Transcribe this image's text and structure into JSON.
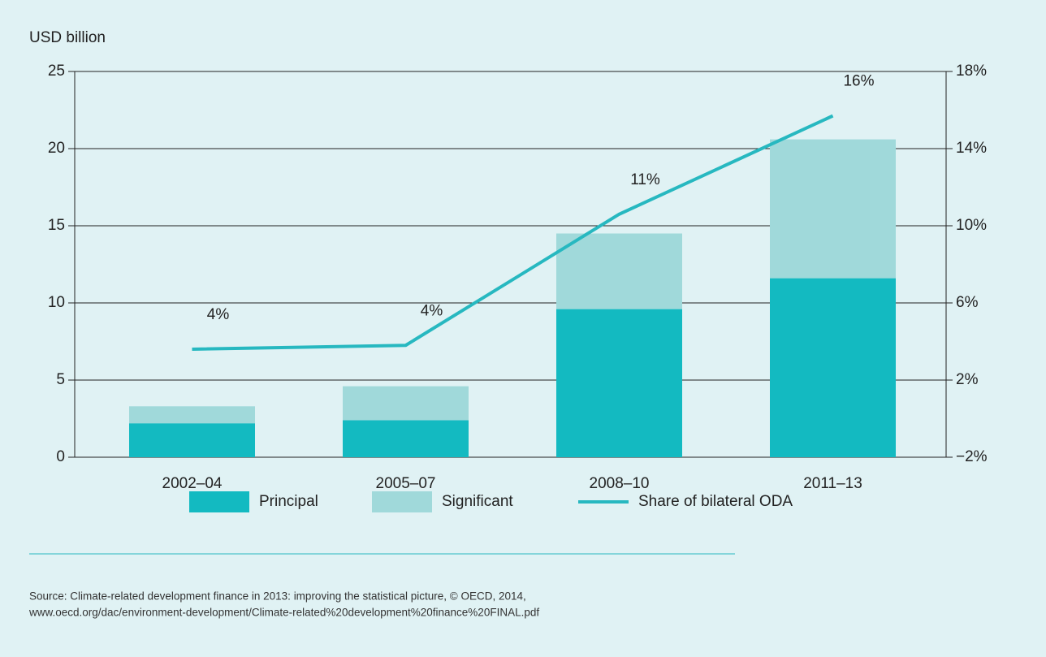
{
  "chart_data": {
    "type": "bar",
    "y_label": "USD billion",
    "categories": [
      "2002–04",
      "2005–07",
      "2008–10",
      "2011–13"
    ],
    "stacked": true,
    "series": [
      {
        "name": "Principal",
        "color": "#13bac1",
        "values": [
          2.2,
          2.4,
          9.6,
          11.6
        ]
      },
      {
        "name": "Significant",
        "color": "#a0d9da",
        "values": [
          1.1,
          2.2,
          4.9,
          9.0
        ]
      },
      {
        "name": "Share of bilateral ODA",
        "type": "line",
        "axis": "y2",
        "color": "#27b8c0",
        "values": [
          3.6,
          3.8,
          10.6,
          15.7
        ],
        "value_labels": [
          "4%",
          "4%",
          "11%",
          "16%"
        ]
      }
    ],
    "ylim": [
      0,
      25
    ],
    "yticks": [
      0,
      5,
      10,
      15,
      20,
      25
    ],
    "y2lim": [
      -2,
      18
    ],
    "y2ticks": [
      {
        "value": -2,
        "label": "−2%"
      },
      {
        "value": 2,
        "label": "2%"
      },
      {
        "value": 6,
        "label": "6%"
      },
      {
        "value": 10,
        "label": "10%"
      },
      {
        "value": 14,
        "label": "14%"
      },
      {
        "value": 18,
        "label": "18%"
      }
    ],
    "grid": true,
    "legend": "bottom",
    "source": [
      "Source: Climate-related development finance in 2013: improving the statistical picture, © OECD, 2014,",
      "www.oecd.org/dac/environment-development/Climate-related%20development%20finance%20FINAL.pdf"
    ]
  }
}
